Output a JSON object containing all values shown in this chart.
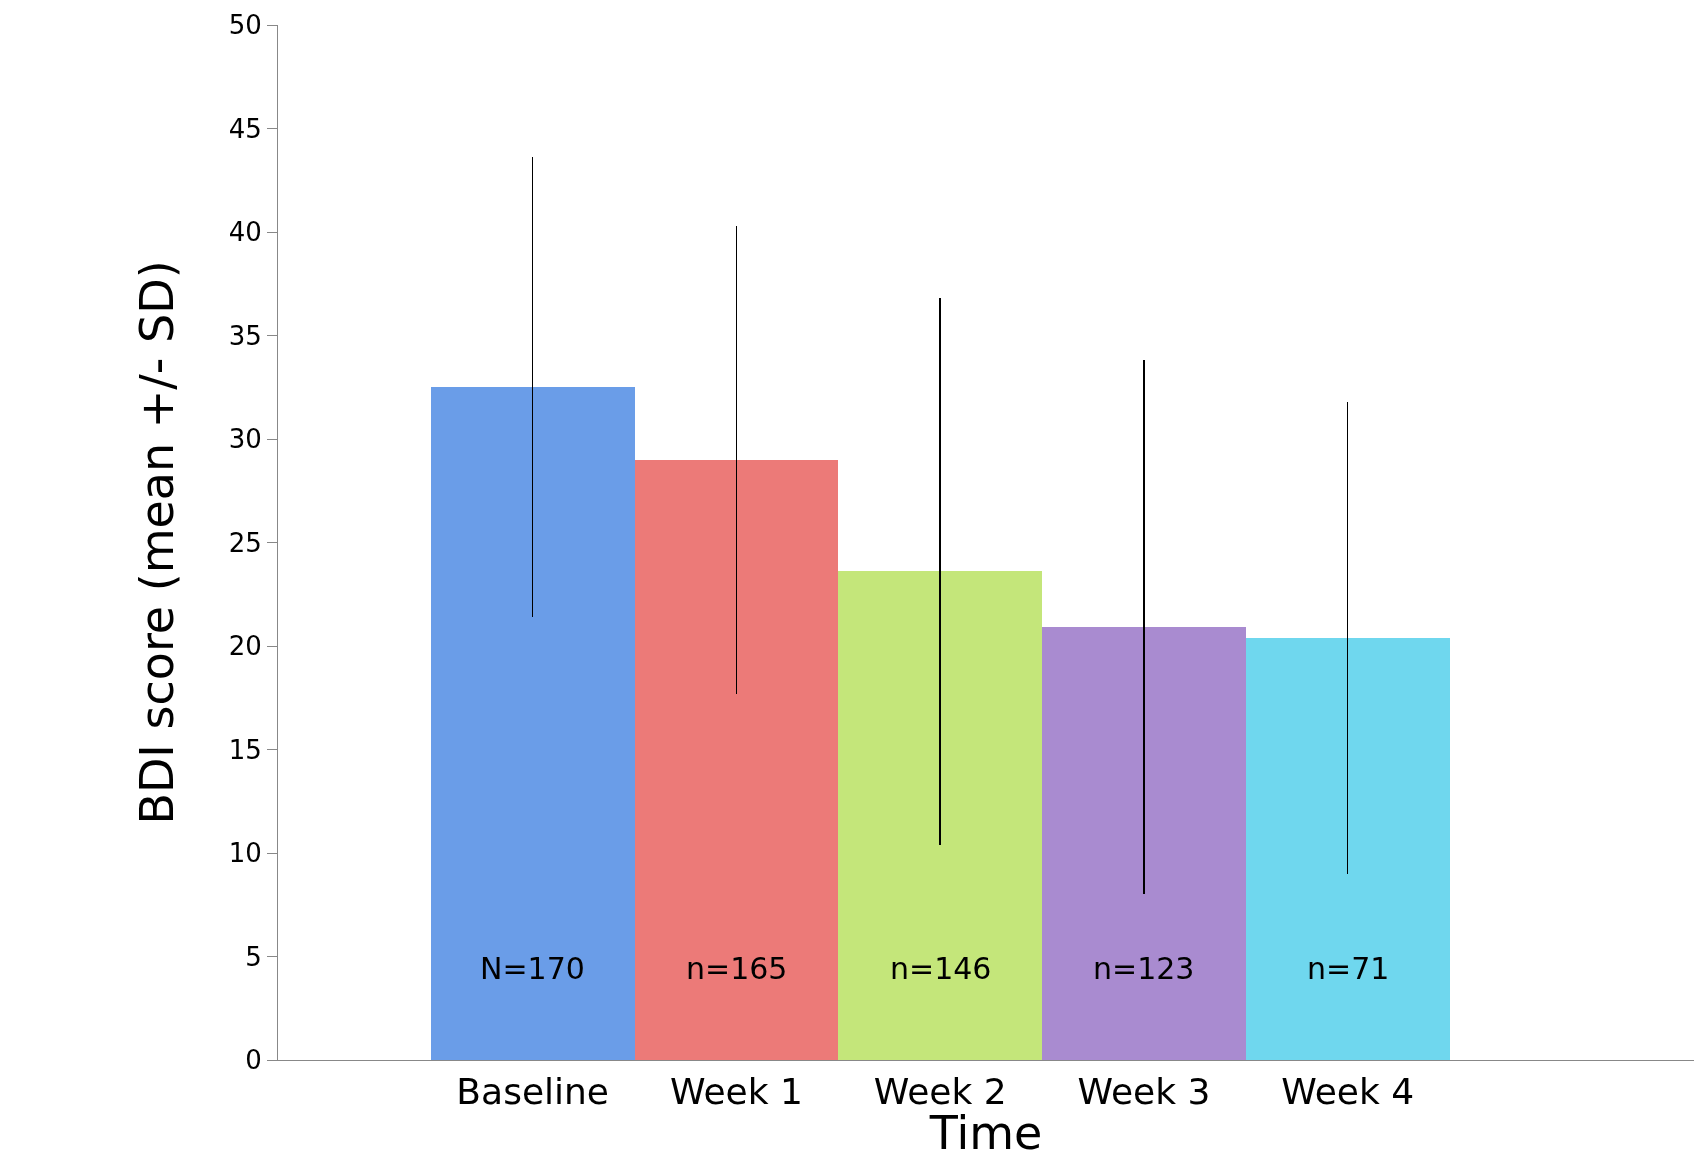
{
  "chart_data": {
    "type": "bar",
    "xlabel": "Time",
    "ylabel": "BDI score (mean +/- SD)",
    "categories": [
      "Baseline",
      "Week 1",
      "Week 2",
      "Week 3",
      "Week 4"
    ],
    "values": [
      32.5,
      29.0,
      23.6,
      20.9,
      20.4
    ],
    "errors": [
      11.1,
      11.3,
      13.2,
      12.9,
      11.4
    ],
    "colors": [
      "#6a9de8",
      "#ec7a78",
      "#c4e67a",
      "#a98bd0",
      "#6fd7ee"
    ],
    "ylim": [
      0,
      50
    ],
    "yticks": [
      0,
      5,
      10,
      15,
      20,
      25,
      30,
      35,
      40,
      45,
      50
    ],
    "annotations": [
      "N=170",
      "n=165",
      "n=146",
      "n=123",
      "n=71"
    ],
    "legend": false
  }
}
